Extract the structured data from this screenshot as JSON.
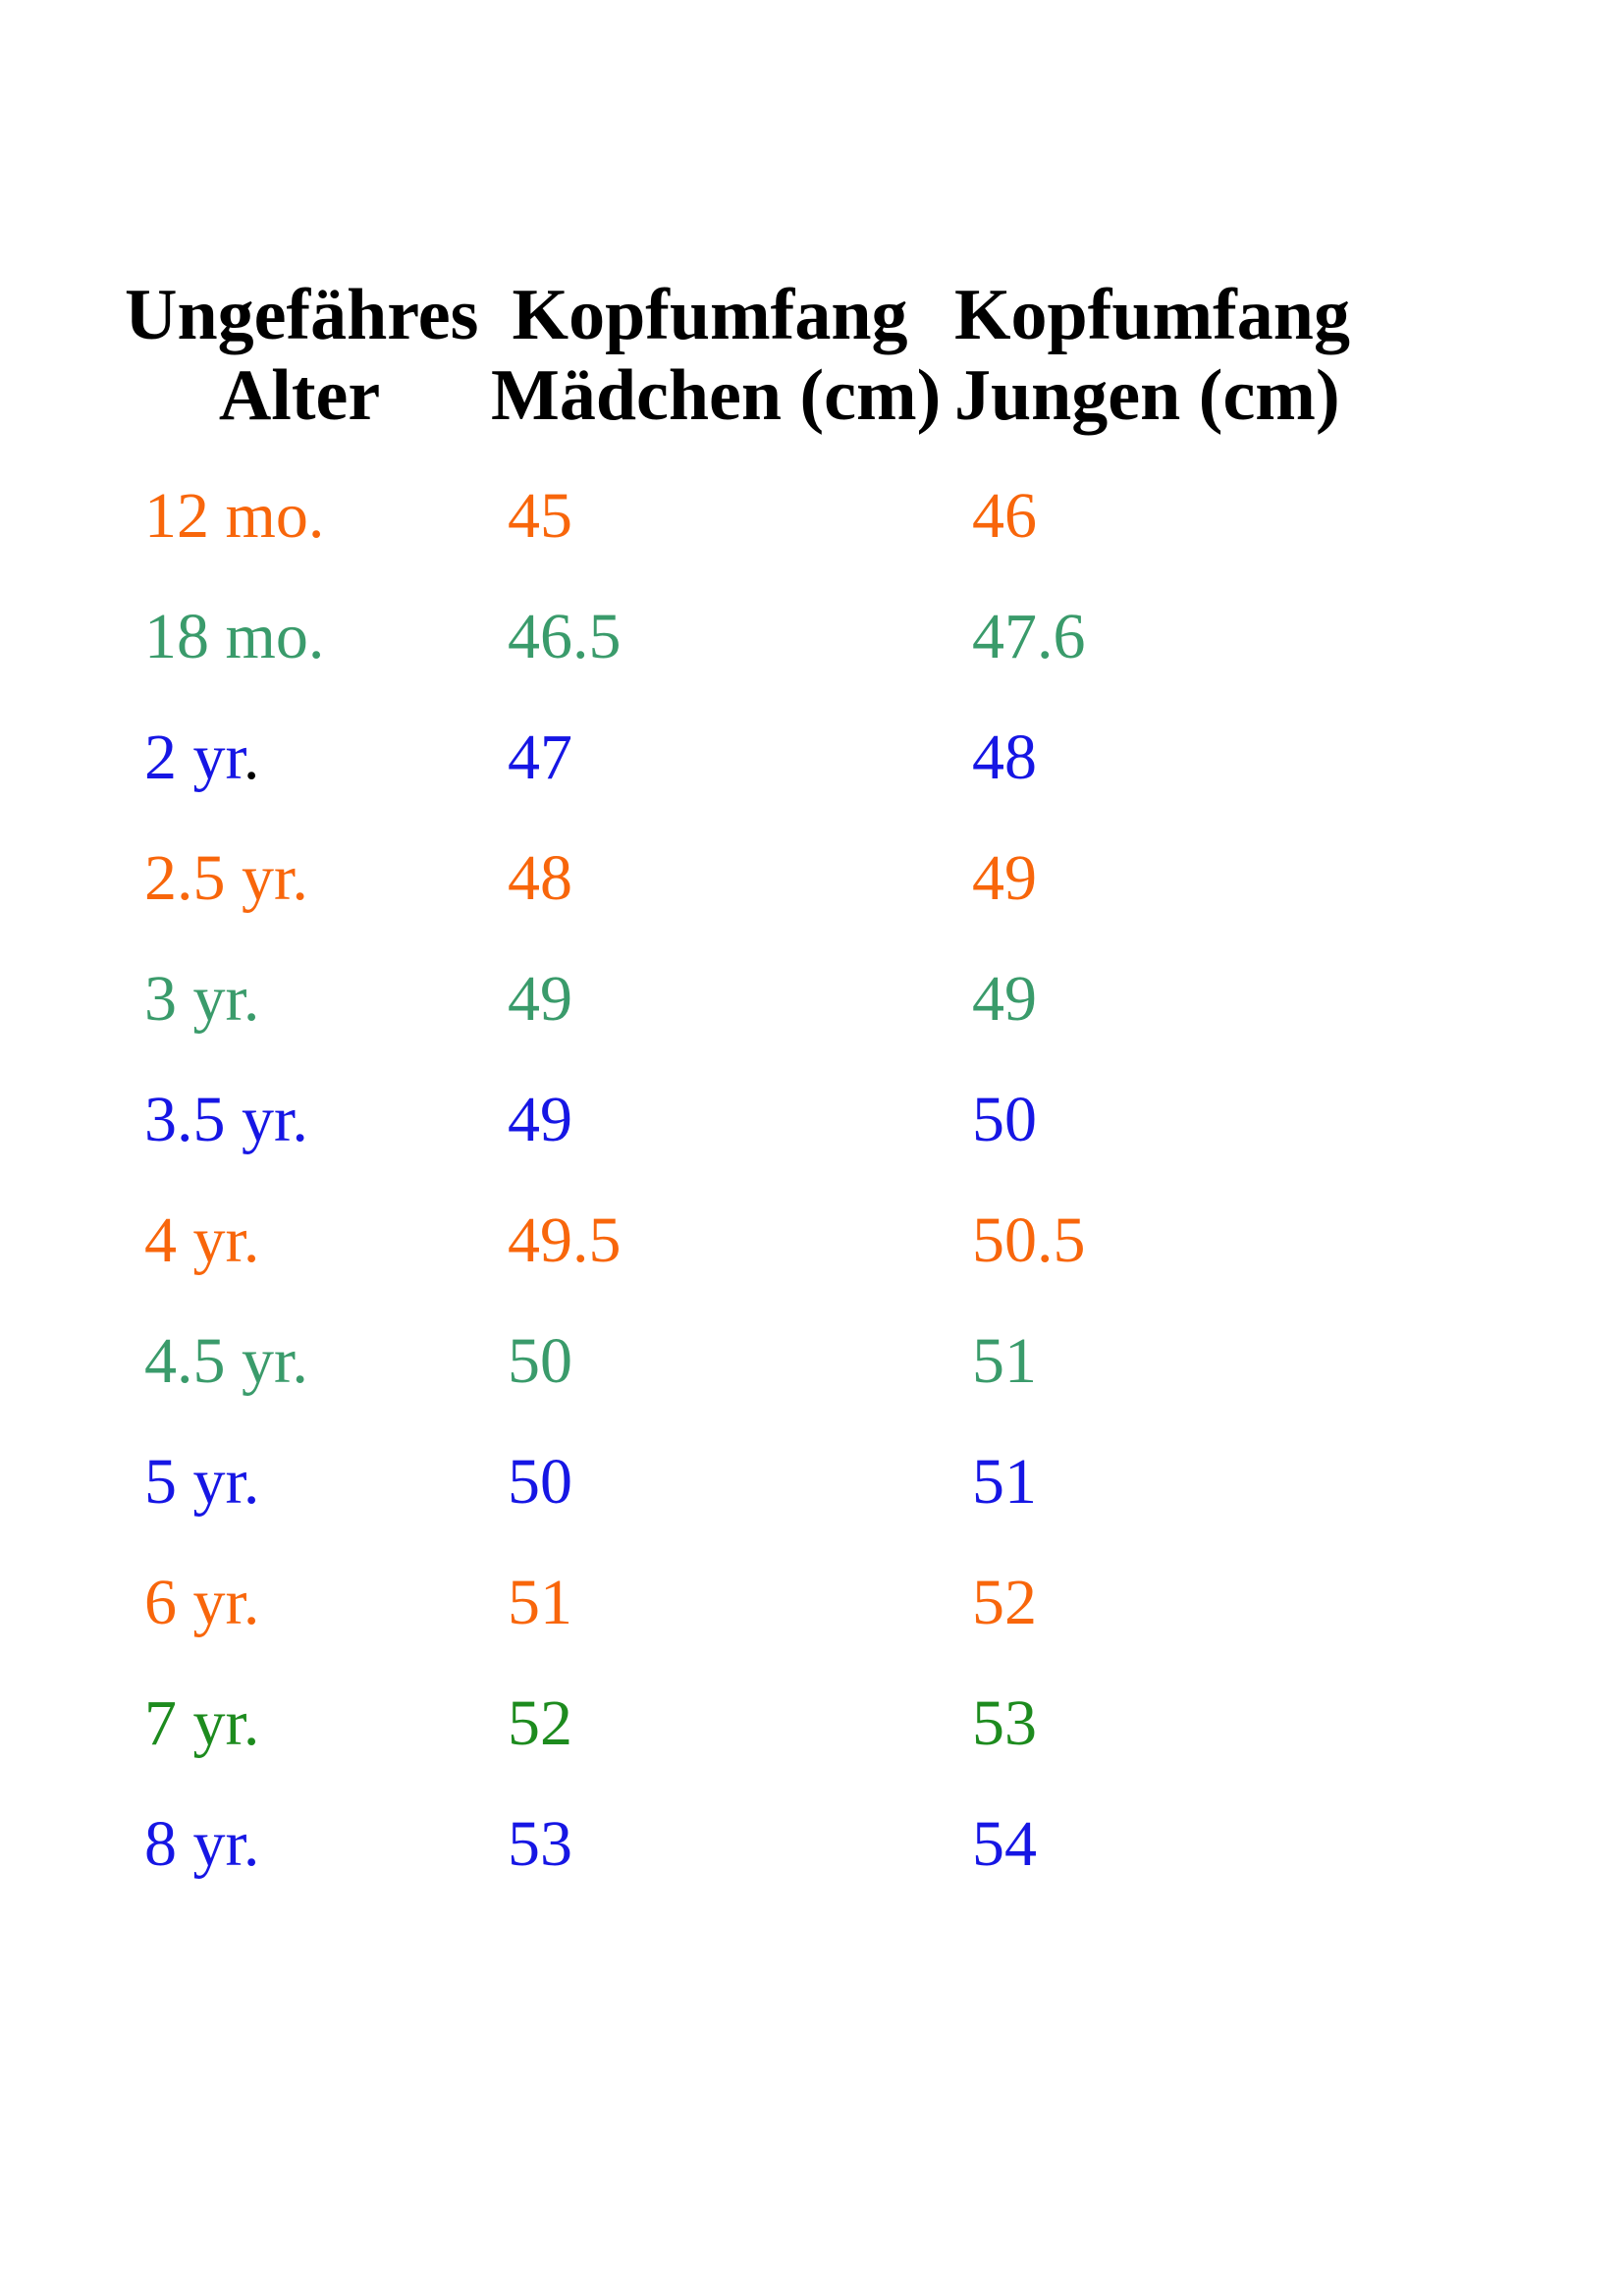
{
  "page": {
    "background": "#ffffff"
  },
  "colors": {
    "orange": "#F8660B",
    "sea_green": "#3A9B6B",
    "blue": "#1616E4",
    "dark_green": "#1D8B1E",
    "header_text": "#000000"
  },
  "columns": [
    {
      "line1": "Ungefähres",
      "line2": "Alter"
    },
    {
      "line1": "Kopfumfang",
      "line2": "Mädchen (cm)"
    },
    {
      "line1": "Kopfumfang",
      "line2": "Jungen (cm)"
    }
  ],
  "rows": [
    {
      "age": "12 mo.",
      "girls_cm": "45",
      "boys_cm": "46",
      "color": "#F8660B"
    },
    {
      "age": "18 mo.",
      "girls_cm": "46.5",
      "boys_cm": "47.6",
      "color": "#3A9B6B"
    },
    {
      "age": "2 yr",
      "age_suffix": ".",
      "age_suffix_color": "#000000",
      "girls_cm": "47",
      "boys_cm": "48",
      "color": "#1616E4"
    },
    {
      "age": "2.5 yr.",
      "girls_cm": "48",
      "boys_cm": "49",
      "color": "#F8660B"
    },
    {
      "age": "3 yr.",
      "girls_cm": "49",
      "boys_cm": "49",
      "color": "#3A9B6B"
    },
    {
      "age": "3.5 yr.",
      "girls_cm": "49",
      "boys_cm": "50",
      "color": "#1616E4"
    },
    {
      "age": "4 yr.",
      "girls_cm": "49.5",
      "boys_cm": "50.5",
      "color": "#F8660B"
    },
    {
      "age": "4.5 yr.",
      "girls_cm": "50",
      "boys_cm": "51",
      "color": "#3A9B6B"
    },
    {
      "age": "5 yr.",
      "girls_cm": "50",
      "boys_cm": "51",
      "color": "#1616E4"
    },
    {
      "age": "6 yr.",
      "girls_cm": "51",
      "boys_cm": "52",
      "color": "#F8660B"
    },
    {
      "age": "7 yr.",
      "girls_cm": "52",
      "boys_cm": "53",
      "color": "#1D8B1E"
    },
    {
      "age": "8 yr.",
      "girls_cm": "53",
      "boys_cm": "54",
      "color": "#1616E4"
    }
  ],
  "chart_data": {
    "type": "table",
    "title": "",
    "columns": [
      "Ungefähres Alter",
      "Kopfumfang Mädchen (cm)",
      "Kopfumfang Jungen (cm)"
    ],
    "rows": [
      [
        "12 mo.",
        45,
        46
      ],
      [
        "18 mo.",
        46.5,
        47.6
      ],
      [
        "2 yr.",
        47,
        48
      ],
      [
        "2.5 yr.",
        48,
        49
      ],
      [
        "3 yr.",
        49,
        49
      ],
      [
        "3.5 yr.",
        49,
        50
      ],
      [
        "4 yr.",
        49.5,
        50.5
      ],
      [
        "4.5 yr.",
        50,
        51
      ],
      [
        "5 yr.",
        50,
        51
      ],
      [
        "6 yr.",
        51,
        52
      ],
      [
        "7 yr.",
        52,
        53
      ],
      [
        "8 yr.",
        53,
        54
      ]
    ]
  }
}
